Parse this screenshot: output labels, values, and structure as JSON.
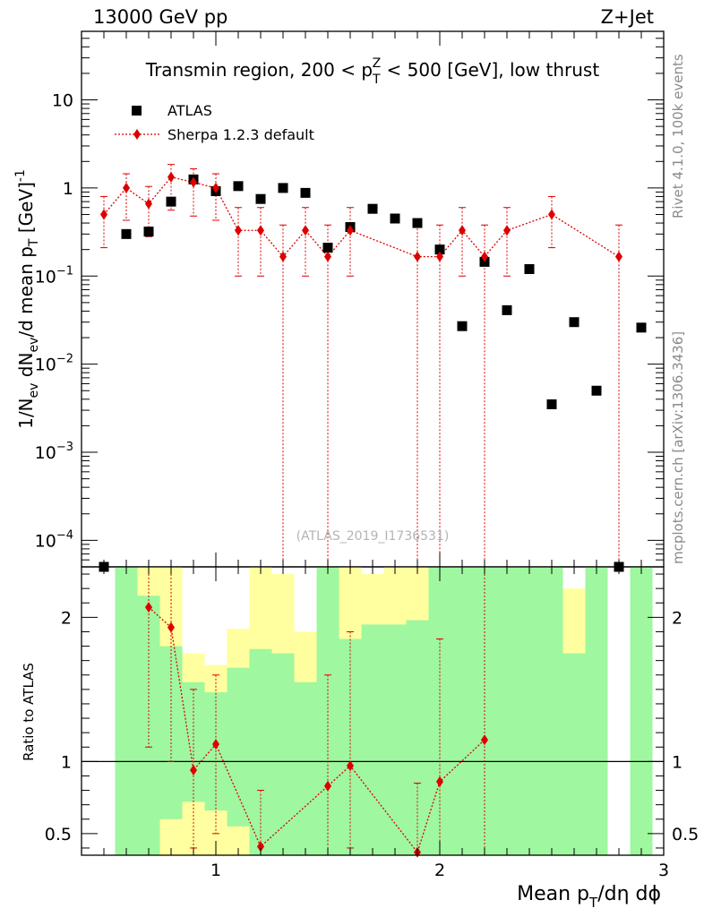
{
  "header": {
    "energy": "13000 GeV pp",
    "process": "Z+Jet"
  },
  "side_labels": {
    "rivet": "Rivet 4.1.0,  100k events",
    "mcplots": "mcplots.cern.ch [arXiv:1306.3436]"
  },
  "watermark": "(ATLAS_2019_I1736531)",
  "chart_data": {
    "type": "scatter",
    "title": "Transmin region, 200 < p_T^Z < 500 [GeV], low thrust",
    "xlabel": "Mean p_T/dη dϕ",
    "ylabel": "1/N_ev dN_ev/d mean p_T [GeV]^-1",
    "xlim": [
      0.4,
      3.0
    ],
    "x_ticks": [
      "1",
      "2",
      "3"
    ],
    "main": {
      "yscale": "log",
      "ylim": [
        5e-05,
        60
      ],
      "y_ticks": [
        "10^-4",
        "10^-3",
        "10^-2",
        "10^-1",
        "1",
        "10"
      ],
      "legend": [
        "ATLAS",
        "Sherpa 1.2.3 default"
      ],
      "series": [
        {
          "name": "ATLAS",
          "x": [
            0.5,
            0.6,
            0.7,
            0.8,
            0.9,
            1.0,
            1.1,
            1.2,
            1.3,
            1.4,
            1.5,
            1.6,
            1.7,
            1.8,
            1.9,
            2.0,
            2.1,
            2.2,
            2.3,
            2.4,
            2.5,
            2.6,
            2.7,
            2.8,
            2.9
          ],
          "y": [
            5e-05,
            0.3,
            0.32,
            0.7,
            1.25,
            0.92,
            1.05,
            0.75,
            1.0,
            0.88,
            0.21,
            0.36,
            0.58,
            0.45,
            0.4,
            0.2,
            0.027,
            0.145,
            0.041,
            0.12,
            0.0035,
            0.03,
            0.005,
            5e-05,
            0.026
          ]
        },
        {
          "name": "Sherpa 1.2.3 default",
          "x": [
            0.5,
            0.6,
            0.7,
            0.8,
            0.9,
            1.0,
            1.1,
            1.2,
            1.3,
            1.4,
            1.5,
            1.6,
            1.9,
            2.0,
            2.1,
            2.2,
            2.3,
            2.5,
            2.8
          ],
          "y": [
            0.5,
            1.0,
            0.66,
            1.33,
            1.16,
            1.0,
            0.33,
            0.33,
            0.166,
            0.33,
            0.166,
            0.33,
            0.166,
            0.166,
            0.33,
            0.166,
            0.33,
            0.5,
            0.166
          ],
          "err_lo": [
            0.21,
            0.43,
            0.28,
            0.56,
            0.48,
            0.43,
            0.1,
            0.1,
            0.0,
            0.1,
            0.0,
            0.1,
            0.0,
            0.0,
            0.1,
            0.0,
            0.1,
            0.21,
            0.0
          ],
          "err_hi": [
            0.8,
            1.45,
            1.04,
            1.85,
            1.65,
            1.45,
            0.6,
            0.6,
            0.38,
            0.6,
            0.38,
            0.6,
            0.38,
            0.38,
            0.6,
            0.38,
            0.6,
            0.8,
            0.38
          ]
        }
      ]
    },
    "ratio": {
      "ylabel": "Ratio to ATLAS",
      "ylim": [
        0.35,
        2.35
      ],
      "y_ticks": [
        "0.5",
        "1",
        "2"
      ],
      "ref_line": 1.0,
      "bands": [
        {
          "x0": 0.55,
          "x1": 0.65,
          "g_lo": 0.0,
          "g_hi": 2.35,
          "y_lo": 0.0,
          "y_hi": 2.35
        },
        {
          "x0": 0.65,
          "x1": 0.75,
          "g_lo": 0.0,
          "g_hi": 2.15,
          "y_lo": 0.0,
          "y_hi": 2.35
        },
        {
          "x0": 0.75,
          "x1": 0.85,
          "g_lo": 0.6,
          "g_hi": 1.8,
          "y_lo": 0.0,
          "y_hi": 2.35
        },
        {
          "x0": 0.85,
          "x1": 0.95,
          "g_lo": 0.72,
          "g_hi": 1.55,
          "y_lo": 0.0,
          "y_hi": 1.75
        },
        {
          "x0": 0.95,
          "x1": 1.05,
          "g_lo": 0.66,
          "g_hi": 1.48,
          "y_lo": 0.0,
          "y_hi": 1.67
        },
        {
          "x0": 1.05,
          "x1": 1.15,
          "g_lo": 0.55,
          "g_hi": 1.65,
          "y_lo": 0.0,
          "y_hi": 1.92
        },
        {
          "x0": 1.15,
          "x1": 1.25,
          "g_lo": 0.0,
          "g_hi": 1.78,
          "y_lo": 0.0,
          "y_hi": 2.35
        },
        {
          "x0": 1.25,
          "x1": 1.35,
          "g_lo": 0.0,
          "g_hi": 1.75,
          "y_lo": 0.0,
          "y_hi": 2.3
        },
        {
          "x0": 1.35,
          "x1": 1.45,
          "g_lo": 0.0,
          "g_hi": 1.55,
          "y_lo": 0.0,
          "y_hi": 1.9
        },
        {
          "x0": 1.45,
          "x1": 1.55,
          "g_lo": 0.0,
          "g_hi": 2.35,
          "y_lo": 0.0,
          "y_hi": 2.35
        },
        {
          "x0": 1.55,
          "x1": 1.65,
          "g_lo": 0.0,
          "g_hi": 1.85,
          "y_lo": 0.0,
          "y_hi": 2.35
        },
        {
          "x0": 1.65,
          "x1": 1.75,
          "g_lo": 0.0,
          "g_hi": 1.95,
          "y_lo": 0.0,
          "y_hi": 2.3
        },
        {
          "x0": 1.75,
          "x1": 1.85,
          "g_lo": 0.0,
          "g_hi": 1.95,
          "y_lo": 0.0,
          "y_hi": 2.35
        },
        {
          "x0": 1.85,
          "x1": 1.95,
          "g_lo": 0.0,
          "g_hi": 1.98,
          "y_lo": 0.0,
          "y_hi": 2.35
        },
        {
          "x0": 1.95,
          "x1": 2.05,
          "g_lo": 0.0,
          "g_hi": 2.35,
          "y_lo": 0.0,
          "y_hi": 2.35
        },
        {
          "x0": 2.05,
          "x1": 2.15,
          "g_lo": 0.0,
          "g_hi": 2.35,
          "y_lo": 0.0,
          "y_hi": 2.35
        },
        {
          "x0": 2.15,
          "x1": 2.25,
          "g_lo": 0.0,
          "g_hi": 2.35,
          "y_lo": 0.0,
          "y_hi": 2.35
        },
        {
          "x0": 2.25,
          "x1": 2.35,
          "g_lo": 0.0,
          "g_hi": 2.35,
          "y_lo": 0.0,
          "y_hi": 2.35
        },
        {
          "x0": 2.35,
          "x1": 2.45,
          "g_lo": 0.0,
          "g_hi": 2.35,
          "y_lo": 0.0,
          "y_hi": 2.35
        },
        {
          "x0": 2.45,
          "x1": 2.55,
          "g_lo": 0.0,
          "g_hi": 2.35,
          "y_lo": 0.0,
          "y_hi": 2.35
        },
        {
          "x0": 2.55,
          "x1": 2.65,
          "g_lo": 0.0,
          "g_hi": 1.75,
          "y_lo": 0.0,
          "y_hi": 2.2
        },
        {
          "x0": 2.65,
          "x1": 2.75,
          "g_lo": 0.0,
          "g_hi": 2.35,
          "y_lo": 0.0,
          "y_hi": 2.35
        },
        {
          "x0": 2.85,
          "x1": 2.95,
          "g_lo": 0.0,
          "g_hi": 2.35,
          "y_lo": 0.0,
          "y_hi": 2.35
        }
      ],
      "points": {
        "x": [
          0.7,
          0.8,
          0.9,
          1.0,
          1.2,
          1.5,
          1.6,
          1.9,
          2.0,
          2.2
        ],
        "y": [
          2.07,
          1.93,
          0.94,
          1.12,
          0.41,
          0.83,
          0.97,
          0.37,
          0.86,
          1.15
        ],
        "err_lo": [
          1.1,
          1.0,
          0.4,
          0.5,
          0.1,
          0.0,
          0.4,
          0.0,
          0.0,
          0.0
        ],
        "err_hi": [
          2.4,
          2.4,
          1.5,
          1.6,
          0.8,
          1.6,
          1.9,
          0.85,
          1.85,
          2.4
        ]
      }
    }
  }
}
